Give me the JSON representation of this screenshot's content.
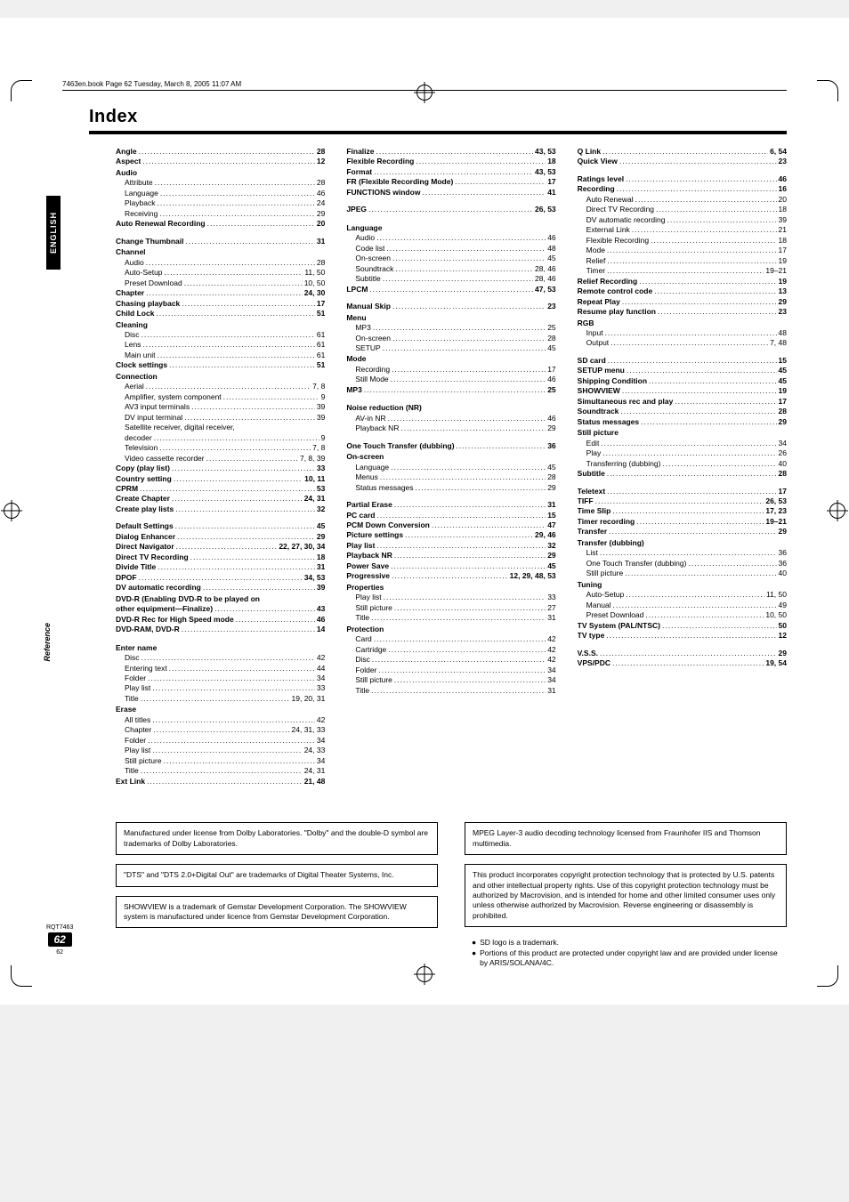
{
  "meta_line": "7463en.book  Page 62  Tuesday, March 8, 2005  11:07 AM",
  "title": "Index",
  "side_tab": "ENGLISH",
  "side_label": "Reference",
  "footer": {
    "doc_code": "RQT7463",
    "page_badge": "62",
    "page_small": "62"
  },
  "columns": [
    [
      {
        "t": "e",
        "l": "Angle",
        "p": "28"
      },
      {
        "t": "e",
        "l": "Aspect",
        "p": "12"
      },
      {
        "t": "h",
        "l": "Audio"
      },
      {
        "t": "s",
        "l": "Attribute",
        "p": "28"
      },
      {
        "t": "s",
        "l": "Language",
        "p": "46"
      },
      {
        "t": "s",
        "l": "Playback",
        "p": "24"
      },
      {
        "t": "s",
        "l": "Receiving",
        "p": "29"
      },
      {
        "t": "e",
        "l": "Auto Renewal Recording",
        "p": "20"
      },
      {
        "t": "gap"
      },
      {
        "t": "e",
        "l": "Change Thumbnail",
        "p": "31"
      },
      {
        "t": "h",
        "l": "Channel"
      },
      {
        "t": "s",
        "l": "Audio",
        "p": "28"
      },
      {
        "t": "s",
        "l": "Auto-Setup",
        "p": "11, 50"
      },
      {
        "t": "s",
        "l": "Preset Download",
        "p": "10, 50"
      },
      {
        "t": "e",
        "l": "Chapter",
        "p": "24, 30"
      },
      {
        "t": "e",
        "l": "Chasing playback",
        "p": "17"
      },
      {
        "t": "e",
        "l": "Child Lock",
        "p": "51"
      },
      {
        "t": "h",
        "l": "Cleaning"
      },
      {
        "t": "s",
        "l": "Disc",
        "p": "61"
      },
      {
        "t": "s",
        "l": "Lens",
        "p": "61"
      },
      {
        "t": "s",
        "l": "Main unit",
        "p": "61"
      },
      {
        "t": "e",
        "l": "Clock settings",
        "p": "51"
      },
      {
        "t": "h",
        "l": "Connection"
      },
      {
        "t": "s",
        "l": "Aerial",
        "p": "7, 8"
      },
      {
        "t": "s",
        "l": "Amplifier, system component",
        "p": "9"
      },
      {
        "t": "s",
        "l": "AV3 input terminals",
        "p": " 39"
      },
      {
        "t": "s",
        "l": "DV input terminal",
        "p": "39"
      },
      {
        "t": "s",
        "l": "Satellite receiver, digital receiver,",
        "p": ""
      },
      {
        "t": "s",
        "l": "decoder",
        "p": "9"
      },
      {
        "t": "s",
        "l": "Television",
        "p": "7, 8"
      },
      {
        "t": "s",
        "l": "Video cassette recorder",
        "p": "7, 8, 39"
      },
      {
        "t": "e",
        "l": "Copy (play list)",
        "p": "33"
      },
      {
        "t": "e",
        "l": "Country setting",
        "p": "10, 11"
      },
      {
        "t": "e",
        "l": "CPRM",
        "p": "53"
      },
      {
        "t": "e",
        "l": "Create Chapter",
        "p": "24, 31"
      },
      {
        "t": "e",
        "l": "Create play lists",
        "p": "32"
      },
      {
        "t": "gap"
      },
      {
        "t": "e",
        "l": "Default Settings",
        "p": "45"
      },
      {
        "t": "e",
        "l": "Dialog Enhancer",
        "p": "29"
      },
      {
        "t": "e",
        "l": "Direct Navigator",
        "p": "22, 27, 30, 34"
      },
      {
        "t": "e",
        "l": "Direct TV Recording",
        "p": "18"
      },
      {
        "t": "e",
        "l": "Divide Title",
        "p": "31"
      },
      {
        "t": "e",
        "l": "DPOF",
        "p": "34, 53"
      },
      {
        "t": "e",
        "l": "DV automatic recording",
        "p": "39"
      },
      {
        "t": "h",
        "l": "DVD-R (Enabling DVD-R to be played on"
      },
      {
        "t": "e",
        "l": "other equipment—Finalize)",
        "p": "43"
      },
      {
        "t": "e",
        "l": "DVD-R Rec for High Speed mode",
        "p": "46"
      },
      {
        "t": "e",
        "l": "DVD-RAM, DVD-R",
        "p": "14"
      },
      {
        "t": "gap"
      },
      {
        "t": "h",
        "l": "Enter name"
      },
      {
        "t": "s",
        "l": "Disc",
        "p": "42"
      },
      {
        "t": "s",
        "l": "Entering text",
        "p": "44"
      },
      {
        "t": "s",
        "l": "Folder",
        "p": "34"
      },
      {
        "t": "s",
        "l": "Play list",
        "p": "33"
      },
      {
        "t": "s",
        "l": "Title",
        "p": "19, 20, 31"
      },
      {
        "t": "h",
        "l": "Erase"
      },
      {
        "t": "s",
        "l": "All titles",
        "p": "42"
      },
      {
        "t": "s",
        "l": "Chapter",
        "p": "24, 31, 33"
      },
      {
        "t": "s",
        "l": "Folder",
        "p": "34"
      },
      {
        "t": "s",
        "l": "Play list",
        "p": "24, 33"
      },
      {
        "t": "s",
        "l": "Still picture",
        "p": "34"
      },
      {
        "t": "s",
        "l": "Title",
        "p": "24, 31"
      },
      {
        "t": "e",
        "l": "Ext Link",
        "p": "21, 48"
      }
    ],
    [
      {
        "t": "e",
        "l": "Finalize",
        "p": "43, 53"
      },
      {
        "t": "e",
        "l": "Flexible Recording",
        "p": "18"
      },
      {
        "t": "e",
        "l": "Format",
        "p": "43, 53"
      },
      {
        "t": "e",
        "l": "FR (Flexible Recording Mode)",
        "p": "17"
      },
      {
        "t": "e",
        "l": "FUNCTIONS window",
        "p": "41"
      },
      {
        "t": "gap"
      },
      {
        "t": "e",
        "l": "JPEG",
        "p": "26, 53"
      },
      {
        "t": "gap"
      },
      {
        "t": "h",
        "l": "Language"
      },
      {
        "t": "s",
        "l": "Audio",
        "p": "46"
      },
      {
        "t": "s",
        "l": "Code list",
        "p": "48"
      },
      {
        "t": "s",
        "l": "On-screen",
        "p": "45"
      },
      {
        "t": "s",
        "l": "Soundtrack",
        "p": "28, 46"
      },
      {
        "t": "s",
        "l": "Subtitle",
        "p": "28, 46"
      },
      {
        "t": "e",
        "l": "LPCM",
        "p": "47, 53"
      },
      {
        "t": "gap"
      },
      {
        "t": "e",
        "l": "Manual Skip",
        "p": "23"
      },
      {
        "t": "h",
        "l": "Menu"
      },
      {
        "t": "s",
        "l": "MP3",
        "p": "25"
      },
      {
        "t": "s",
        "l": "On-screen",
        "p": "28"
      },
      {
        "t": "s",
        "l": "SETUP",
        "p": "45"
      },
      {
        "t": "h",
        "l": "Mode"
      },
      {
        "t": "s",
        "l": "Recording",
        "p": "17"
      },
      {
        "t": "s",
        "l": "Still Mode",
        "p": "46"
      },
      {
        "t": "e",
        "l": "MP3",
        "p": "25"
      },
      {
        "t": "gap"
      },
      {
        "t": "h",
        "l": "Noise reduction (NR)"
      },
      {
        "t": "s",
        "l": "AV-in NR",
        "p": "46"
      },
      {
        "t": "s",
        "l": "Playback NR",
        "p": "29"
      },
      {
        "t": "gap"
      },
      {
        "t": "e",
        "l": "One Touch Transfer (dubbing)",
        "p": "36"
      },
      {
        "t": "h",
        "l": "On-screen"
      },
      {
        "t": "s",
        "l": "Language",
        "p": "45"
      },
      {
        "t": "s",
        "l": "Menus",
        "p": "28"
      },
      {
        "t": "s",
        "l": "Status messages",
        "p": "29"
      },
      {
        "t": "gap"
      },
      {
        "t": "e",
        "l": "Partial Erase",
        "p": "31"
      },
      {
        "t": "e",
        "l": "PC card",
        "p": "15"
      },
      {
        "t": "e",
        "l": "PCM Down Conversion",
        "p": "47"
      },
      {
        "t": "e",
        "l": "Picture settings",
        "p": "29, 46"
      },
      {
        "t": "e",
        "l": "Play list",
        "p": "32"
      },
      {
        "t": "e",
        "l": "Playback NR",
        "p": "29"
      },
      {
        "t": "e",
        "l": "Power Save",
        "p": "45"
      },
      {
        "t": "e",
        "l": "Progressive",
        "p": "12, 29, 48, 53"
      },
      {
        "t": "h",
        "l": "Properties"
      },
      {
        "t": "s",
        "l": "Play list",
        "p": "33"
      },
      {
        "t": "s",
        "l": "Still picture",
        "p": "27"
      },
      {
        "t": "s",
        "l": "Title",
        "p": "31"
      },
      {
        "t": "h",
        "l": "Protection"
      },
      {
        "t": "s",
        "l": "Card",
        "p": "42"
      },
      {
        "t": "s",
        "l": "Cartridge",
        "p": "42"
      },
      {
        "t": "s",
        "l": "Disc",
        "p": "42"
      },
      {
        "t": "s",
        "l": "Folder",
        "p": "34"
      },
      {
        "t": "s",
        "l": "Still picture",
        "p": "34"
      },
      {
        "t": "s",
        "l": "Title",
        "p": "31"
      }
    ],
    [
      {
        "t": "e",
        "l": "Q Link",
        "p": "6, 54"
      },
      {
        "t": "e",
        "l": "Quick View",
        "p": "23"
      },
      {
        "t": "gap"
      },
      {
        "t": "e",
        "l": "Ratings level",
        "p": "46"
      },
      {
        "t": "e",
        "l": "Recording",
        "p": "16"
      },
      {
        "t": "s",
        "l": "Auto Renewal",
        "p": "20"
      },
      {
        "t": "s",
        "l": "Direct TV Recording",
        "p": "18"
      },
      {
        "t": "s",
        "l": "DV automatic recording",
        "p": "39"
      },
      {
        "t": "s",
        "l": "External Link",
        "p": "21"
      },
      {
        "t": "s",
        "l": "Flexible Recording",
        "p": "18"
      },
      {
        "t": "s",
        "l": "Mode",
        "p": "17"
      },
      {
        "t": "s",
        "l": "Relief",
        "p": "19"
      },
      {
        "t": "s",
        "l": "Timer",
        "p": "19–21"
      },
      {
        "t": "e",
        "l": "Relief Recording",
        "p": "19"
      },
      {
        "t": "e",
        "l": "Remote control code",
        "p": "13"
      },
      {
        "t": "e",
        "l": "Repeat Play",
        "p": "29"
      },
      {
        "t": "e",
        "l": "Resume play function",
        "p": "23"
      },
      {
        "t": "h",
        "l": "RGB"
      },
      {
        "t": "s",
        "l": "Input",
        "p": "48"
      },
      {
        "t": "s",
        "l": "Output",
        "p": "7, 48"
      },
      {
        "t": "gap"
      },
      {
        "t": "e",
        "l": "SD card",
        "p": "15"
      },
      {
        "t": "e",
        "l": "SETUP menu",
        "p": "45"
      },
      {
        "t": "e",
        "l": "Shipping Condition",
        "p": "45"
      },
      {
        "t": "e",
        "l": "SHOWVIEW",
        "p": "19"
      },
      {
        "t": "e",
        "l": "Simultaneous rec and play",
        "p": "17"
      },
      {
        "t": "e",
        "l": "Soundtrack",
        "p": "28"
      },
      {
        "t": "e",
        "l": "Status messages",
        "p": "29"
      },
      {
        "t": "h",
        "l": "Still picture"
      },
      {
        "t": "s",
        "l": "Edit",
        "p": "34"
      },
      {
        "t": "s",
        "l": "Play",
        "p": "26"
      },
      {
        "t": "s",
        "l": "Transferring (dubbing)",
        "p": "40"
      },
      {
        "t": "e",
        "l": "Subtitle",
        "p": "28"
      },
      {
        "t": "gap"
      },
      {
        "t": "e",
        "l": "Teletext",
        "p": "17"
      },
      {
        "t": "e",
        "l": "TIFF",
        "p": "26, 53"
      },
      {
        "t": "e",
        "l": "Time Slip",
        "p": "17, 23"
      },
      {
        "t": "e",
        "l": "Timer recording",
        "p": "19–21"
      },
      {
        "t": "e",
        "l": "Transfer",
        "p": "29"
      },
      {
        "t": "h",
        "l": "Transfer (dubbing)"
      },
      {
        "t": "s",
        "l": "List",
        "p": "36"
      },
      {
        "t": "s",
        "l": "One Touch Transfer (dubbing)",
        "p": "36"
      },
      {
        "t": "s",
        "l": "Still picture",
        "p": "40"
      },
      {
        "t": "h",
        "l": "Tuning"
      },
      {
        "t": "s",
        "l": "Auto-Setup",
        "p": "11, 50"
      },
      {
        "t": "s",
        "l": "Manual",
        "p": "49"
      },
      {
        "t": "s",
        "l": "Preset Download",
        "p": "10, 50"
      },
      {
        "t": "e",
        "l": "TV System (PAL/NTSC)",
        "p": "50"
      },
      {
        "t": "e",
        "l": "TV type",
        "p": "12"
      },
      {
        "t": "gap"
      },
      {
        "t": "e",
        "l": "V.S.S.",
        "p": "29"
      },
      {
        "t": "e",
        "l": "VPS/PDC",
        "p": "19, 54"
      }
    ]
  ],
  "notices": {
    "left": [
      "Manufactured under license from Dolby Laboratories. \"Dolby\" and the double-D symbol are trademarks of Dolby Laboratories.",
      "\"DTS\" and \"DTS 2.0+Digital Out\" are trademarks of Digital Theater Systems, Inc.",
      "SHOWVIEW is a trademark of Gemstar Development Corporation. The SHOWVIEW system is manufactured under licence from Gemstar Development Corporation."
    ],
    "right_boxed": [
      "MPEG Layer-3 audio decoding technology licensed from Fraunhofer IIS and Thomson multimedia.",
      "This product incorporates copyright protection technology that is protected by U.S. patents and other intellectual property rights. Use of this copyright protection technology must be authorized by Macrovision, and is intended for home and other limited consumer uses only unless otherwise authorized by Macrovision. Reverse engineering or disassembly is prohibited."
    ],
    "right_bullets": [
      "SD logo is a trademark.",
      "Portions of this product are protected under copyright law and are provided under license by ARIS/SOLANA/4C."
    ]
  }
}
